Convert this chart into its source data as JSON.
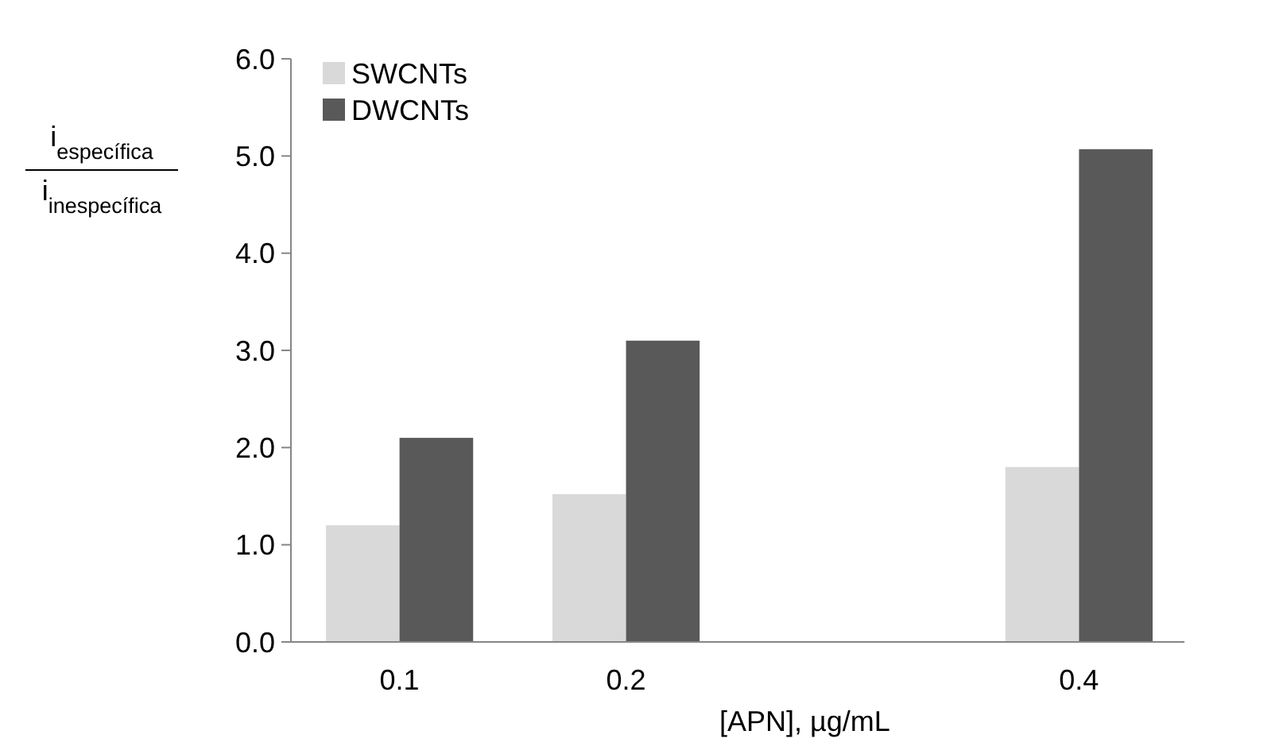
{
  "chart_data": {
    "type": "bar",
    "xlabel": "[APN], µg/mL",
    "ylabel": "i$_{específica}$ i$_{inespecífica}$",
    "categories": [
      "0.1",
      "0.2",
      null,
      "0.4"
    ],
    "series": [
      {
        "name": "SWCNTs",
        "color": "#d9d9d9",
        "values": [
          1.2,
          1.52,
          null,
          1.8
        ]
      },
      {
        "name": "DWCNTs",
        "color": "#595959",
        "values": [
          2.1,
          3.1,
          null,
          5.07
        ]
      }
    ],
    "ylim": [
      0,
      6
    ],
    "yticks": [
      {
        "value": 0,
        "label": "0.0"
      },
      {
        "value": 1,
        "label": "1.0"
      },
      {
        "value": 2,
        "label": "2.0"
      },
      {
        "value": 3,
        "label": "3.0"
      },
      {
        "value": 4,
        "label": "4.0"
      },
      {
        "value": 5,
        "label": "5.0"
      },
      {
        "value": 6,
        "label": "6.0"
      }
    ],
    "grid": false,
    "legend": "top left"
  }
}
